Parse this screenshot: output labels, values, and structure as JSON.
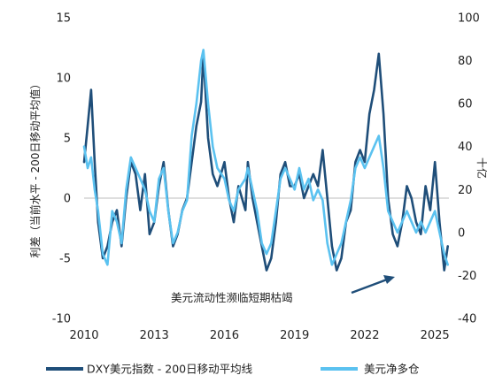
{
  "chart_data": {
    "type": "line",
    "title": "",
    "y_left_label": "利差（当前水平 - 200日移动平均值）",
    "y_right_label": "十亿",
    "x_ticks": [
      "2010",
      "2013",
      "2016",
      "2019",
      "2022",
      "2025"
    ],
    "x_range": [
      2010,
      2025.6
    ],
    "y_left_ticks": [
      "15",
      "10",
      "5",
      "0",
      "-5",
      "-10"
    ],
    "y_left_range": [
      -10,
      15
    ],
    "y_right_ticks": [
      "100",
      "80",
      "60",
      "40",
      "20",
      "0",
      "-20",
      "-40"
    ],
    "y_right_range": [
      -40,
      100
    ],
    "annotation": "美元流动性濒临短期枯竭",
    "legend_position": "bottom",
    "colors": {
      "dxy": "#1f4e79",
      "net_long": "#5bc2f0",
      "zero_line": "#bdbdbd"
    },
    "series": [
      {
        "name": "DXY美元指数 - 200日移动平均线",
        "axis": "left",
        "x": [
          2010.0,
          2010.15,
          2010.3,
          2010.45,
          2010.6,
          2010.8,
          2011.0,
          2011.2,
          2011.4,
          2011.6,
          2011.8,
          2012.0,
          2012.2,
          2012.4,
          2012.6,
          2012.8,
          2013.0,
          2013.2,
          2013.4,
          2013.6,
          2013.8,
          2014.0,
          2014.2,
          2014.4,
          2014.6,
          2014.8,
          2015.0,
          2015.1,
          2015.3,
          2015.5,
          2015.7,
          2016.0,
          2016.2,
          2016.4,
          2016.6,
          2016.9,
          2017.0,
          2017.2,
          2017.4,
          2017.6,
          2017.8,
          2018.0,
          2018.2,
          2018.4,
          2018.6,
          2018.8,
          2019.0,
          2019.2,
          2019.4,
          2019.6,
          2019.8,
          2020.0,
          2020.2,
          2020.4,
          2020.6,
          2020.8,
          2021.0,
          2021.2,
          2021.4,
          2021.6,
          2021.8,
          2022.0,
          2022.2,
          2022.4,
          2022.6,
          2022.8,
          2023.0,
          2023.2,
          2023.4,
          2023.6,
          2023.8,
          2024.0,
          2024.2,
          2024.4,
          2024.6,
          2024.8,
          2025.0,
          2025.2,
          2025.4,
          2025.55
        ],
        "values": [
          3,
          6,
          9,
          3,
          -2,
          -5,
          -4,
          -2,
          -1,
          -4,
          0,
          3,
          2,
          -1,
          2,
          -3,
          -2,
          1,
          3,
          -1,
          -4,
          -3,
          -1,
          0,
          3,
          6,
          8,
          12,
          5,
          2,
          1,
          3,
          0,
          -2,
          1,
          -1,
          3,
          0,
          -2,
          -4,
          -6,
          -5,
          -2,
          2,
          3,
          1,
          1,
          2,
          0,
          1,
          2,
          1,
          4,
          0,
          -4,
          -6,
          -5,
          -2,
          -1,
          3,
          4,
          3,
          7,
          9,
          12,
          7,
          0,
          -3,
          -4,
          -2,
          1,
          0,
          -2,
          -3,
          1,
          -1,
          3,
          -2,
          -6,
          -4
        ]
      },
      {
        "name": "美元净多仓",
        "axis": "right",
        "x": [
          2010.0,
          2010.15,
          2010.3,
          2010.45,
          2010.6,
          2010.8,
          2011.0,
          2011.2,
          2011.4,
          2011.6,
          2011.8,
          2012.0,
          2012.2,
          2012.4,
          2012.6,
          2012.8,
          2013.0,
          2013.2,
          2013.4,
          2013.6,
          2013.8,
          2014.0,
          2014.2,
          2014.4,
          2014.6,
          2014.8,
          2015.0,
          2015.1,
          2015.3,
          2015.5,
          2015.7,
          2016.0,
          2016.2,
          2016.4,
          2016.6,
          2016.9,
          2017.0,
          2017.2,
          2017.4,
          2017.6,
          2017.8,
          2018.0,
          2018.2,
          2018.4,
          2018.6,
          2018.8,
          2019.0,
          2019.2,
          2019.4,
          2019.6,
          2019.8,
          2020.0,
          2020.2,
          2020.4,
          2020.6,
          2020.8,
          2021.0,
          2021.2,
          2021.4,
          2021.6,
          2021.8,
          2022.0,
          2022.2,
          2022.4,
          2022.6,
          2022.8,
          2023.0,
          2023.2,
          2023.4,
          2023.6,
          2023.8,
          2024.0,
          2024.2,
          2024.4,
          2024.6,
          2024.8,
          2025.0,
          2025.2,
          2025.4,
          2025.55
        ],
        "values": [
          40,
          30,
          35,
          20,
          10,
          -10,
          -15,
          10,
          5,
          -5,
          20,
          35,
          30,
          25,
          20,
          10,
          5,
          25,
          30,
          10,
          -5,
          0,
          10,
          15,
          45,
          60,
          80,
          85,
          60,
          40,
          30,
          25,
          15,
          10,
          20,
          25,
          30,
          20,
          10,
          -5,
          -10,
          -5,
          10,
          25,
          30,
          25,
          20,
          30,
          20,
          25,
          15,
          20,
          15,
          -5,
          -15,
          -10,
          -5,
          5,
          15,
          30,
          35,
          30,
          35,
          40,
          45,
          30,
          10,
          5,
          0,
          5,
          10,
          5,
          0,
          5,
          0,
          5,
          10,
          0,
          -10,
          -15
        ]
      }
    ]
  }
}
